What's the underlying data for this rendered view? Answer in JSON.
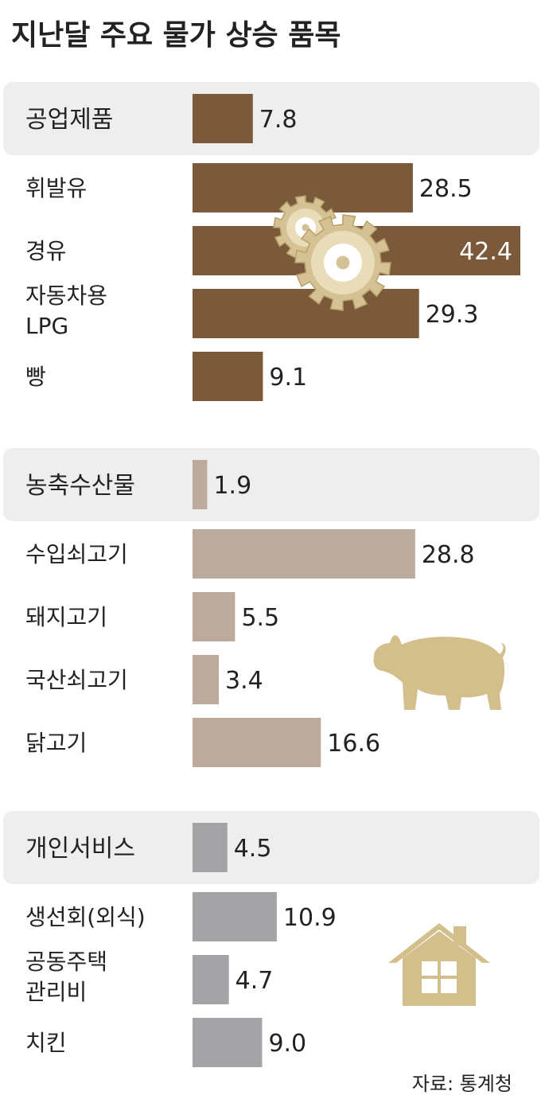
{
  "title": "지난달 주요 물가 상승 품목",
  "source": "자료: 통계청",
  "chart_data": {
    "type": "bar",
    "orientation": "horizontal",
    "title": "지난달 주요 물가 상승 품목",
    "xlim": [
      0,
      42.4
    ],
    "groups": [
      {
        "name": "공업제품",
        "value": 7.8,
        "color": "#7a5a3a",
        "icon": "gears-icon",
        "items": [
          {
            "label": [
              "휘발유"
            ],
            "value": 28.5
          },
          {
            "label": [
              "경유"
            ],
            "value": 42.4
          },
          {
            "label": [
              "자동차용",
              "LPG"
            ],
            "value": 29.3
          },
          {
            "label": [
              "빵"
            ],
            "value": 9.1
          }
        ]
      },
      {
        "name": "농축수산물",
        "value": 1.9,
        "color": "#bcaa9c",
        "icon": "pig-icon",
        "items": [
          {
            "label": [
              "수입쇠고기"
            ],
            "value": 28.8
          },
          {
            "label": [
              "돼지고기"
            ],
            "value": 5.5
          },
          {
            "label": [
              "국산쇠고기"
            ],
            "value": 3.4
          },
          {
            "label": [
              "닭고기"
            ],
            "value": 16.6
          }
        ]
      },
      {
        "name": "개인서비스",
        "value": 4.5,
        "color": "#a4a4a7",
        "icon": "house-icon",
        "items": [
          {
            "label": [
              "생선회(외식)"
            ],
            "value": 10.9
          },
          {
            "label": [
              "공동주택",
              "관리비"
            ],
            "value": 4.7
          },
          {
            "label": [
              "치킨"
            ],
            "value": 9.0
          }
        ]
      }
    ]
  }
}
